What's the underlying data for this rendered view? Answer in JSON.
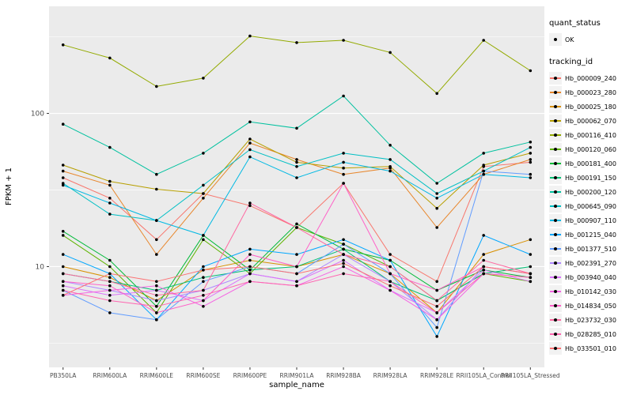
{
  "legend": {
    "quant_title": "quant_status",
    "quant_ok_label": "OK",
    "tracking_title": "tracking_id"
  },
  "chart_data": {
    "type": "line",
    "title": "",
    "xlabel": "sample_name",
    "ylabel": "FPKM + 1",
    "y_scale": "log10",
    "ylim": [
      2.2,
      500
    ],
    "y_breaks": [
      10,
      100
    ],
    "y_minor_breaks": [
      3.16,
      31.6,
      316
    ],
    "grid": true,
    "legend_position": "right",
    "panel_bg": "#EBEBEB",
    "grid_color": "#FFFFFF",
    "point_color": "#000000",
    "categories": [
      "PB350LA",
      "RRIM600LA",
      "RRIM600LE",
      "RRIM600SE",
      "RRIM600PE",
      "RRIM901LA",
      "RRIM928BA",
      "RRIM928LA",
      "RRIM928LE",
      "RRII105LA_Control",
      "RRII105LA_Stressed"
    ],
    "series": [
      {
        "name": "Hb_000009_240",
        "color": "#F8766D",
        "values": [
          38,
          28,
          15,
          30,
          25,
          18,
          35,
          12,
          8,
          45,
          48
        ]
      },
      {
        "name": "Hb_000023_280",
        "color": "#E8862B",
        "values": [
          42,
          34,
          12,
          28,
          64,
          50,
          40,
          44,
          18,
          40,
          50
        ]
      },
      {
        "name": "Hb_000025_180",
        "color": "#D89000",
        "values": [
          10,
          8.5,
          6,
          9.5,
          11,
          10,
          12,
          9,
          5,
          12,
          15
        ]
      },
      {
        "name": "Hb_000062_070",
        "color": "#B79F00",
        "values": [
          46,
          36,
          32,
          30,
          68,
          48,
          44,
          45,
          24,
          46,
          55
        ]
      },
      {
        "name": "Hb_000116_410",
        "color": "#93AA00",
        "values": [
          280,
          230,
          150,
          170,
          320,
          290,
          300,
          250,
          135,
          300,
          190
        ]
      },
      {
        "name": "Hb_000120_060",
        "color": "#5EB300",
        "values": [
          16,
          10,
          5,
          15,
          9,
          18,
          14,
          10,
          6,
          9,
          8
        ]
      },
      {
        "name": "Hb_000181_400",
        "color": "#00BA38",
        "values": [
          17,
          11,
          5.5,
          16,
          9.5,
          19,
          13,
          11,
          7,
          9.5,
          8.5
        ]
      },
      {
        "name": "Hb_000191_150",
        "color": "#00BF74",
        "values": [
          9,
          8,
          7,
          8.5,
          9.5,
          10,
          13,
          8,
          6,
          9,
          10
        ]
      },
      {
        "name": "Hb_000200_120",
        "color": "#00C19F",
        "values": [
          85,
          60,
          40,
          55,
          88,
          80,
          130,
          62,
          35,
          55,
          65
        ]
      },
      {
        "name": "Hb_000645_090",
        "color": "#00BFC4",
        "values": [
          35,
          22,
          20,
          34,
          58,
          45,
          55,
          50,
          30,
          42,
          60
        ]
      },
      {
        "name": "Hb_000907_110",
        "color": "#00B9E3",
        "values": [
          34,
          26,
          20,
          16,
          52,
          38,
          48,
          42,
          28,
          40,
          38
        ]
      },
      {
        "name": "Hb_001215_040",
        "color": "#00A7FF",
        "values": [
          12,
          9,
          4.5,
          10,
          13,
          12,
          15,
          11,
          3.5,
          16,
          12
        ]
      },
      {
        "name": "Hb_001377_510",
        "color": "#619CFF",
        "values": [
          7,
          5,
          4.5,
          8,
          10,
          9,
          14,
          9,
          4,
          42,
          40
        ]
      },
      {
        "name": "Hb_002391_270",
        "color": "#AE87FF",
        "values": [
          8,
          7,
          6,
          7,
          9,
          8,
          12,
          8,
          4.5,
          10,
          9
        ]
      },
      {
        "name": "Hb_003940_040",
        "color": "#DB72FB",
        "values": [
          7.5,
          6.5,
          7,
          6,
          9,
          8,
          11,
          7,
          5,
          9.5,
          8
        ]
      },
      {
        "name": "Hb_010142_030",
        "color": "#F564E3",
        "values": [
          6.5,
          7,
          7.5,
          5.5,
          8,
          7.5,
          10,
          7,
          4.5,
          9,
          8.5
        ]
      },
      {
        "name": "Hb_014834_050",
        "color": "#FF61C8",
        "values": [
          8,
          7.5,
          5,
          6,
          12,
          10,
          35,
          9,
          7,
          10,
          9
        ]
      },
      {
        "name": "Hb_023732_030",
        "color": "#FF68A1",
        "values": [
          9,
          8,
          6.5,
          7,
          26,
          18,
          12,
          10,
          6,
          11,
          9
        ]
      },
      {
        "name": "Hb_028285_010",
        "color": "#FF64B0",
        "values": [
          7,
          6,
          5.5,
          6.5,
          8,
          7.5,
          9,
          8,
          5,
          9,
          8.5
        ]
      },
      {
        "name": "Hb_033501_010",
        "color": "#FC7173",
        "values": [
          6.5,
          9,
          8,
          9.5,
          10,
          9,
          10.5,
          7.5,
          5.5,
          10,
          9
        ]
      }
    ]
  }
}
